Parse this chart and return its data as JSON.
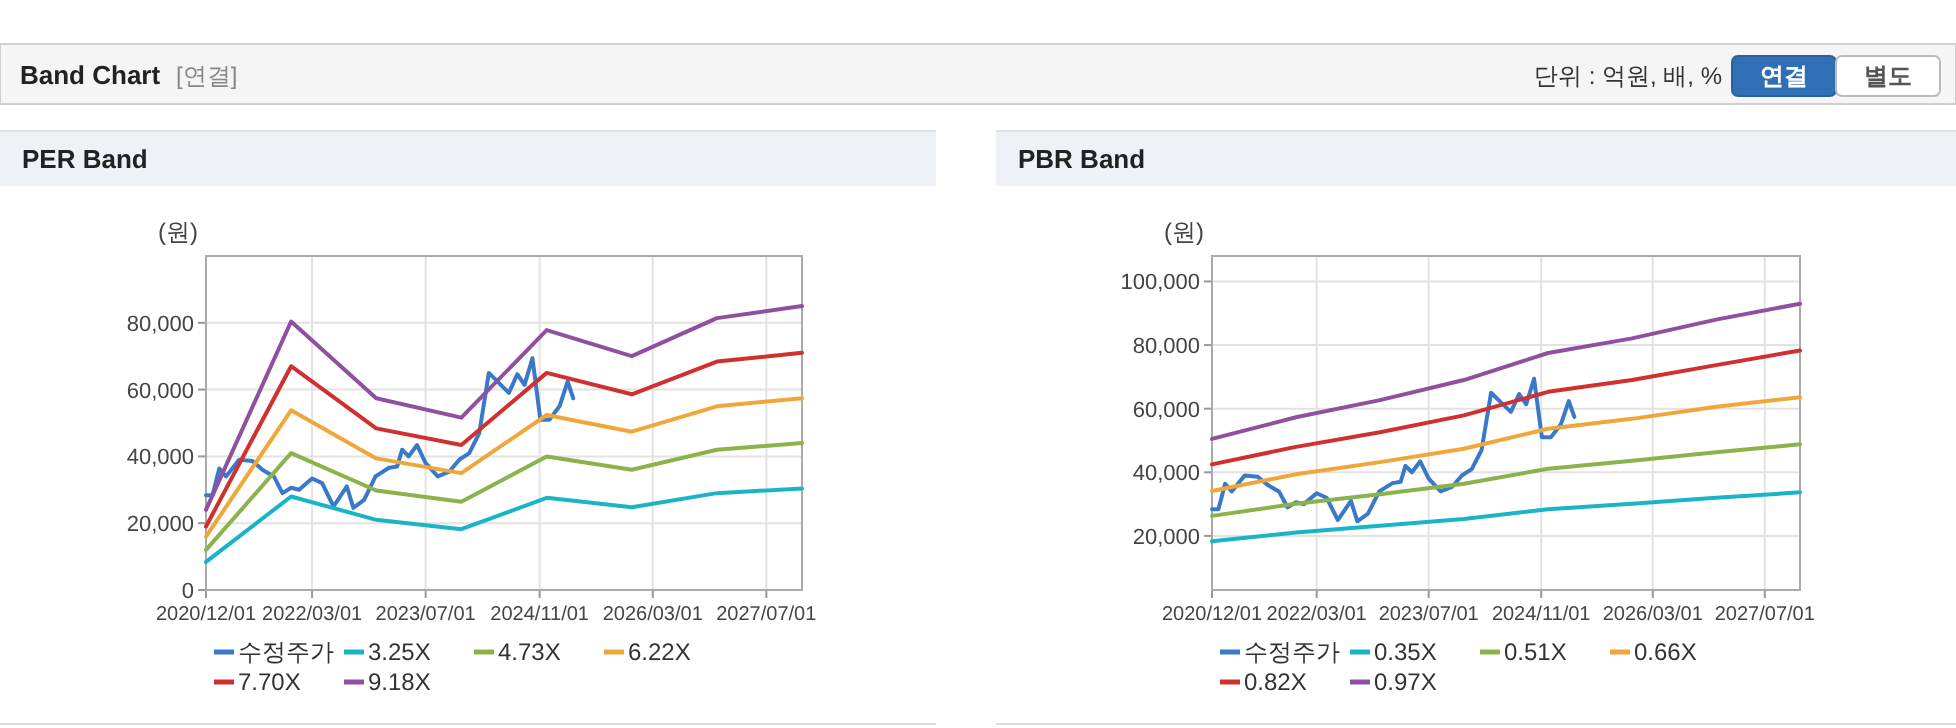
{
  "chart_data": [
    {
      "type": "other",
      "title": "Band Chart",
      "annotations": [
        "[연결]",
        "단위 : 억원, 배, %",
        "연결",
        "별도"
      ]
    },
    {
      "type": "line",
      "title": "PER Band",
      "ylabel": "(원)",
      "xlim": [
        "2020-12-01",
        "2027-12-01"
      ],
      "ylim": [
        0,
        100000
      ],
      "xticks": [
        {
          "value": "2020-12-01",
          "label": "2020/12/01"
        },
        {
          "value": "2022-03-01",
          "label": "2022/03/01"
        },
        {
          "value": "2023-07-01",
          "label": "2023/07/01"
        },
        {
          "value": "2024-11-01",
          "label": "2024/11/01"
        },
        {
          "value": "2026-03-01",
          "label": "2026/03/01"
        },
        {
          "value": "2027-07-01",
          "label": "2027/07/01"
        }
      ],
      "yticks": [
        0,
        {
          "value": 20000,
          "label": "20,000"
        },
        {
          "value": 40000,
          "label": "40,000"
        },
        {
          "value": 60000,
          "label": "60,000"
        },
        {
          "value": 80000,
          "label": "80,000"
        }
      ],
      "grid": true,
      "legend": "bottom",
      "series": [
        {
          "name": "수정주가",
          "color": "#3a78c8",
          "x": [
            "2020-12-01",
            "2020-12-29",
            "2021-01-27",
            "2021-02-25",
            "2021-04-22",
            "2021-06-18",
            "2021-07-31",
            "2021-09-18",
            "2021-10-25",
            "2021-12-01",
            "2022-01-04",
            "2022-03-01",
            "2022-04-13",
            "2022-06-01",
            "2022-07-28",
            "2022-08-25",
            "2022-10-10",
            "2022-11-28",
            "2023-01-25",
            "2023-03-01",
            "2023-03-22",
            "2023-04-19",
            "2023-05-25",
            "2023-07-01",
            "2023-08-22",
            "2023-10-10",
            "2023-11-22",
            "2024-01-04",
            "2024-02-16",
            "2024-03-28",
            "2024-05-10",
            "2024-06-22",
            "2024-07-28",
            "2024-08-28",
            "2024-10-01",
            "2024-11-04",
            "2024-12-13",
            "2025-01-25",
            "2025-03-01",
            "2025-03-25"
          ],
          "values": [
            28400,
            28400,
            36400,
            34000,
            39000,
            38600,
            36000,
            34000,
            29000,
            30600,
            30000,
            33400,
            32000,
            25000,
            31000,
            24600,
            27000,
            34000,
            36600,
            37000,
            42000,
            40000,
            43400,
            38000,
            34000,
            35400,
            39000,
            41000,
            47000,
            65000,
            62000,
            59000,
            64600,
            61400,
            69400,
            51000,
            51000,
            55000,
            62400,
            57400
          ]
        },
        {
          "name": "3.25X",
          "color": "#19b5c7",
          "x": [
            "2020-12-01",
            "2021-12-01",
            "2022-12-01",
            "2023-12-01",
            "2024-12-01",
            "2025-12-01",
            "2026-12-01",
            "2027-12-01"
          ],
          "values": [
            8400,
            28000,
            21000,
            18200,
            27600,
            24800,
            29000,
            30400
          ]
        },
        {
          "name": "4.73X",
          "color": "#8bb34b",
          "x": [
            "2020-12-01",
            "2021-12-01",
            "2022-12-01",
            "2023-12-01",
            "2024-12-01",
            "2025-12-01",
            "2026-12-01",
            "2027-12-01"
          ],
          "values": [
            12000,
            41000,
            29800,
            26400,
            40000,
            36000,
            42000,
            44000
          ]
        },
        {
          "name": "6.22X",
          "color": "#f0a73a",
          "x": [
            "2020-12-01",
            "2021-12-01",
            "2022-12-01",
            "2023-12-01",
            "2024-12-01",
            "2025-12-01",
            "2026-12-01",
            "2027-12-01"
          ],
          "values": [
            16000,
            53800,
            39400,
            35000,
            52400,
            47400,
            55000,
            57400
          ]
        },
        {
          "name": "7.70X",
          "color": "#d03030",
          "x": [
            "2020-12-01",
            "2021-12-01",
            "2022-12-01",
            "2023-12-01",
            "2024-12-01",
            "2025-12-01",
            "2026-12-01",
            "2027-12-01"
          ],
          "values": [
            19000,
            67000,
            48400,
            43400,
            65000,
            58600,
            68400,
            71000
          ]
        },
        {
          "name": "9.18X",
          "color": "#9050a0",
          "x": [
            "2020-12-01",
            "2021-12-01",
            "2022-12-01",
            "2023-12-01",
            "2024-12-01",
            "2025-12-01",
            "2026-12-01",
            "2027-12-01"
          ],
          "values": [
            24000,
            80400,
            57400,
            51600,
            77800,
            70000,
            81400,
            85000
          ]
        }
      ]
    },
    {
      "type": "line",
      "title": "PBR Band",
      "ylabel": "(원)",
      "xlim": [
        "2020-12-01",
        "2027-12-01"
      ],
      "ylim": [
        3000,
        108000
      ],
      "xticks": [
        {
          "value": "2020-12-01",
          "label": "2020/12/01"
        },
        {
          "value": "2022-03-01",
          "label": "2022/03/01"
        },
        {
          "value": "2023-07-01",
          "label": "2023/07/01"
        },
        {
          "value": "2024-11-01",
          "label": "2024/11/01"
        },
        {
          "value": "2026-03-01",
          "label": "2026/03/01"
        },
        {
          "value": "2027-07-01",
          "label": "2027/07/01"
        }
      ],
      "yticks": [
        {
          "value": 20000,
          "label": "20,000"
        },
        {
          "value": 40000,
          "label": "40,000"
        },
        {
          "value": 60000,
          "label": "60,000"
        },
        {
          "value": 80000,
          "label": "80,000"
        },
        {
          "value": 100000,
          "label": "100,000"
        }
      ],
      "grid": true,
      "legend": "bottom",
      "series": [
        {
          "name": "수정주가",
          "color": "#3a78c8",
          "x": [
            "2020-12-01",
            "2020-12-29",
            "2021-01-27",
            "2021-02-25",
            "2021-04-22",
            "2021-06-18",
            "2021-07-31",
            "2021-09-18",
            "2021-10-25",
            "2021-12-01",
            "2022-01-04",
            "2022-03-01",
            "2022-04-13",
            "2022-06-01",
            "2022-07-28",
            "2022-08-25",
            "2022-10-10",
            "2022-11-28",
            "2023-01-25",
            "2023-03-01",
            "2023-03-22",
            "2023-04-19",
            "2023-05-25",
            "2023-07-01",
            "2023-08-22",
            "2023-10-10",
            "2023-11-22",
            "2024-01-04",
            "2024-02-16",
            "2024-03-28",
            "2024-05-10",
            "2024-06-22",
            "2024-07-28",
            "2024-08-28",
            "2024-10-01",
            "2024-11-04",
            "2024-12-13",
            "2025-01-25",
            "2025-03-01",
            "2025-03-25"
          ],
          "values": [
            28400,
            28400,
            36400,
            34000,
            39000,
            38600,
            36000,
            34000,
            29000,
            30600,
            30000,
            33400,
            32000,
            25000,
            31000,
            24600,
            27000,
            34000,
            36600,
            37000,
            42000,
            40000,
            43400,
            38000,
            34000,
            35400,
            39000,
            41000,
            47000,
            65000,
            62000,
            59000,
            64600,
            61400,
            69400,
            51000,
            51000,
            55000,
            62400,
            57400
          ]
        },
        {
          "name": "0.35X",
          "color": "#19b5c7",
          "x": [
            "2020-12-01",
            "2021-12-01",
            "2022-12-01",
            "2023-12-01",
            "2024-12-01",
            "2025-12-01",
            "2026-12-01",
            "2027-12-01"
          ],
          "values": [
            18300,
            21100,
            23200,
            25300,
            28400,
            30100,
            32000,
            33700
          ]
        },
        {
          "name": "0.51X",
          "color": "#8bb34b",
          "x": [
            "2020-12-01",
            "2021-12-01",
            "2022-12-01",
            "2023-12-01",
            "2024-12-01",
            "2025-12-01",
            "2026-12-01",
            "2027-12-01"
          ],
          "values": [
            26300,
            30100,
            33100,
            36400,
            41100,
            43600,
            46300,
            48800
          ]
        },
        {
          "name": "0.66X",
          "color": "#f0a73a",
          "x": [
            "2020-12-01",
            "2021-12-01",
            "2022-12-01",
            "2023-12-01",
            "2024-12-01",
            "2025-12-01",
            "2026-12-01",
            "2027-12-01"
          ],
          "values": [
            34100,
            39400,
            43200,
            47400,
            53700,
            56800,
            60600,
            63600
          ]
        },
        {
          "name": "0.82X",
          "color": "#d03030",
          "x": [
            "2020-12-01",
            "2021-12-01",
            "2022-12-01",
            "2023-12-01",
            "2024-12-01",
            "2025-12-01",
            "2026-12-01",
            "2027-12-01"
          ],
          "values": [
            42500,
            48000,
            52600,
            57900,
            65300,
            69000,
            73700,
            78300
          ]
        },
        {
          "name": "0.97X",
          "color": "#9050a0",
          "x": [
            "2020-12-01",
            "2021-12-01",
            "2022-12-01",
            "2023-12-01",
            "2024-12-01",
            "2025-12-01",
            "2026-12-01",
            "2027-12-01"
          ],
          "values": [
            50500,
            57300,
            62700,
            69000,
            77500,
            82100,
            88000,
            93000
          ]
        }
      ]
    }
  ]
}
